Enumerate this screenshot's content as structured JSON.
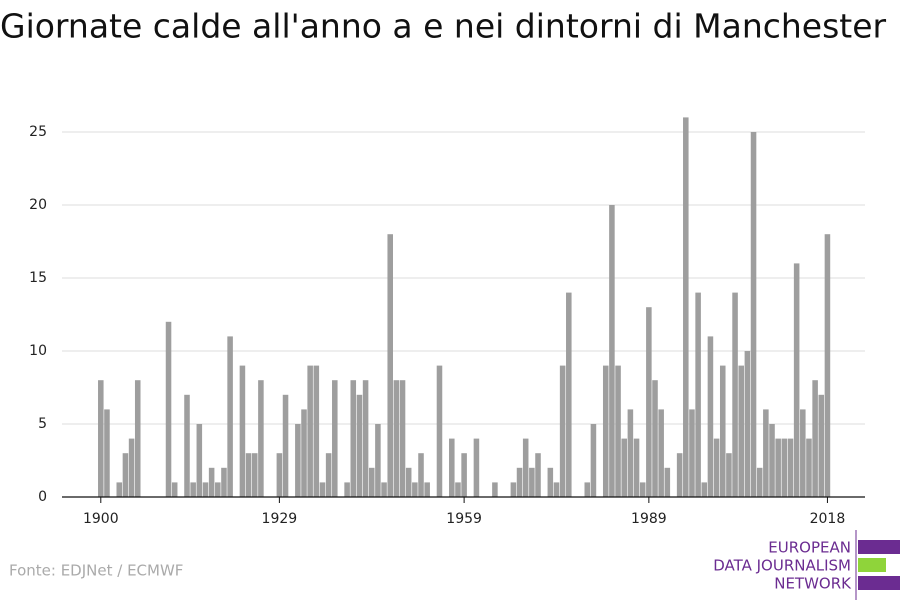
{
  "chart_data": {
    "type": "bar",
    "title": "Giornate calde all'anno a e nei dintorni di Manchester",
    "source": "Fonte: EDJNet / ECMWF",
    "logo": [
      "EUROPEAN",
      "DATA JOURNALISM",
      "NETWORK"
    ],
    "color": "#9e9e9e",
    "x": [
      1900,
      1901,
      1902,
      1903,
      1904,
      1905,
      1906,
      1907,
      1908,
      1909,
      1910,
      1911,
      1912,
      1913,
      1914,
      1915,
      1916,
      1917,
      1918,
      1919,
      1920,
      1921,
      1922,
      1923,
      1924,
      1925,
      1926,
      1927,
      1928,
      1929,
      1930,
      1931,
      1932,
      1933,
      1934,
      1935,
      1936,
      1937,
      1938,
      1939,
      1940,
      1941,
      1942,
      1943,
      1944,
      1945,
      1946,
      1947,
      1948,
      1949,
      1950,
      1951,
      1952,
      1953,
      1954,
      1955,
      1956,
      1957,
      1958,
      1959,
      1960,
      1961,
      1962,
      1963,
      1964,
      1965,
      1966,
      1967,
      1968,
      1969,
      1970,
      1971,
      1972,
      1973,
      1974,
      1975,
      1976,
      1977,
      1978,
      1979,
      1980,
      1981,
      1982,
      1983,
      1984,
      1985,
      1986,
      1987,
      1988,
      1989,
      1990,
      1991,
      1992,
      1993,
      1994,
      1995,
      1996,
      1997,
      1998,
      1999,
      2000,
      2001,
      2002,
      2003,
      2004,
      2005,
      2006,
      2007,
      2008,
      2009,
      2010,
      2011,
      2012,
      2013,
      2014,
      2015,
      2016,
      2017,
      2018
    ],
    "values": [
      8,
      6,
      0,
      1,
      3,
      4,
      8,
      0,
      0,
      0,
      0,
      12,
      1,
      0,
      7,
      1,
      5,
      1,
      2,
      1,
      2,
      11,
      0,
      9,
      3,
      3,
      8,
      0,
      0,
      3,
      7,
      0,
      5,
      6,
      9,
      9,
      1,
      3,
      8,
      0,
      1,
      8,
      7,
      8,
      2,
      5,
      1,
      18,
      8,
      8,
      2,
      1,
      3,
      1,
      0,
      9,
      0,
      4,
      1,
      3,
      0,
      4,
      0,
      0,
      1,
      0,
      0,
      1,
      2,
      4,
      2,
      3,
      0,
      2,
      1,
      9,
      14,
      0,
      0,
      1,
      5,
      0,
      9,
      20,
      9,
      4,
      6,
      4,
      1,
      13,
      8,
      6,
      2,
      0,
      3,
      26,
      6,
      14,
      1,
      11,
      4,
      9,
      3,
      14,
      9,
      10,
      25,
      2,
      6,
      5,
      4,
      4,
      4,
      16,
      6,
      4,
      8,
      7,
      18
    ],
    "xlim": [
      1893.7,
      2024.1
    ],
    "xticks": [
      1900,
      1929,
      1959,
      1989,
      2018
    ],
    "ylim": [
      0,
      25
    ],
    "yticks": [
      0,
      5,
      10,
      15,
      20,
      25
    ],
    "grid": true
  }
}
